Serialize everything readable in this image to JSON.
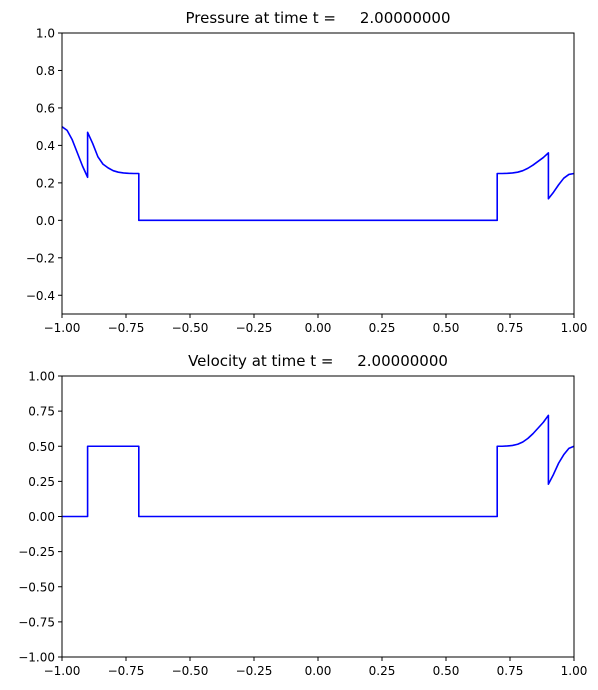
{
  "chart_data": [
    {
      "type": "line",
      "title": "Pressure at time t =     2.00000000",
      "xlim": [
        -1.0,
        1.0
      ],
      "ylim": [
        -0.5,
        1.0
      ],
      "xticks": [
        "−1.00",
        "−0.75",
        "−0.50",
        "−0.25",
        "0.00",
        "0.25",
        "0.50",
        "0.75",
        "1.00"
      ],
      "xtick_values": [
        -1.0,
        -0.75,
        -0.5,
        -0.25,
        0.0,
        0.25,
        0.5,
        0.75,
        1.0
      ],
      "yticks": [
        "−0.4",
        "−0.2",
        "0.0",
        "0.2",
        "0.4",
        "0.6",
        "0.8",
        "1.0"
      ],
      "ytick_values": [
        -0.4,
        -0.2,
        0.0,
        0.2,
        0.4,
        0.6,
        0.8,
        1.0
      ],
      "grid": false,
      "series": [
        {
          "color": "#0000ff",
          "x": [
            -1.0,
            -0.98,
            -0.96,
            -0.94,
            -0.92,
            -0.9,
            -0.9,
            -0.88,
            -0.86,
            -0.84,
            -0.82,
            -0.8,
            -0.78,
            -0.76,
            -0.74,
            -0.72,
            -0.7,
            -0.7,
            0.0,
            0.7,
            0.7,
            0.72,
            0.74,
            0.76,
            0.78,
            0.8,
            0.82,
            0.84,
            0.86,
            0.88,
            0.9,
            0.9,
            0.92,
            0.94,
            0.96,
            0.98,
            1.0
          ],
          "y": [
            0.5,
            0.48,
            0.43,
            0.36,
            0.29,
            0.23,
            0.47,
            0.41,
            0.34,
            0.3,
            0.28,
            0.265,
            0.257,
            0.253,
            0.251,
            0.25,
            0.25,
            0.0,
            0.0,
            0.0,
            0.25,
            0.25,
            0.251,
            0.253,
            0.257,
            0.265,
            0.278,
            0.295,
            0.315,
            0.335,
            0.36,
            0.115,
            0.15,
            0.19,
            0.225,
            0.245,
            0.25
          ]
        }
      ]
    },
    {
      "type": "line",
      "title": "Velocity at time t =     2.00000000",
      "xlim": [
        -1.0,
        1.0
      ],
      "ylim": [
        -1.0,
        1.0
      ],
      "xticks": [
        "−1.00",
        "−0.75",
        "−0.50",
        "−0.25",
        "0.00",
        "0.25",
        "0.50",
        "0.75",
        "1.00"
      ],
      "xtick_values": [
        -1.0,
        -0.75,
        -0.5,
        -0.25,
        0.0,
        0.25,
        0.5,
        0.75,
        1.0
      ],
      "yticks": [
        "−1.00",
        "−0.75",
        "−0.50",
        "−0.25",
        "0.00",
        "0.25",
        "0.50",
        "0.75",
        "1.00"
      ],
      "ytick_values": [
        -1.0,
        -0.75,
        -0.5,
        -0.25,
        0.0,
        0.25,
        0.5,
        0.75,
        1.0
      ],
      "grid": false,
      "series": [
        {
          "color": "#0000ff",
          "x": [
            -1.0,
            -0.9,
            -0.9,
            -0.7,
            -0.7,
            0.0,
            0.7,
            0.7,
            0.72,
            0.74,
            0.76,
            0.78,
            0.8,
            0.82,
            0.84,
            0.86,
            0.88,
            0.9,
            0.9,
            0.92,
            0.94,
            0.96,
            0.98,
            1.0
          ],
          "y": [
            0.0,
            0.0,
            0.5,
            0.5,
            0.0,
            0.0,
            0.0,
            0.5,
            0.5,
            0.502,
            0.506,
            0.514,
            0.53,
            0.556,
            0.59,
            0.63,
            0.67,
            0.72,
            0.23,
            0.3,
            0.38,
            0.44,
            0.485,
            0.5
          ]
        }
      ]
    }
  ]
}
